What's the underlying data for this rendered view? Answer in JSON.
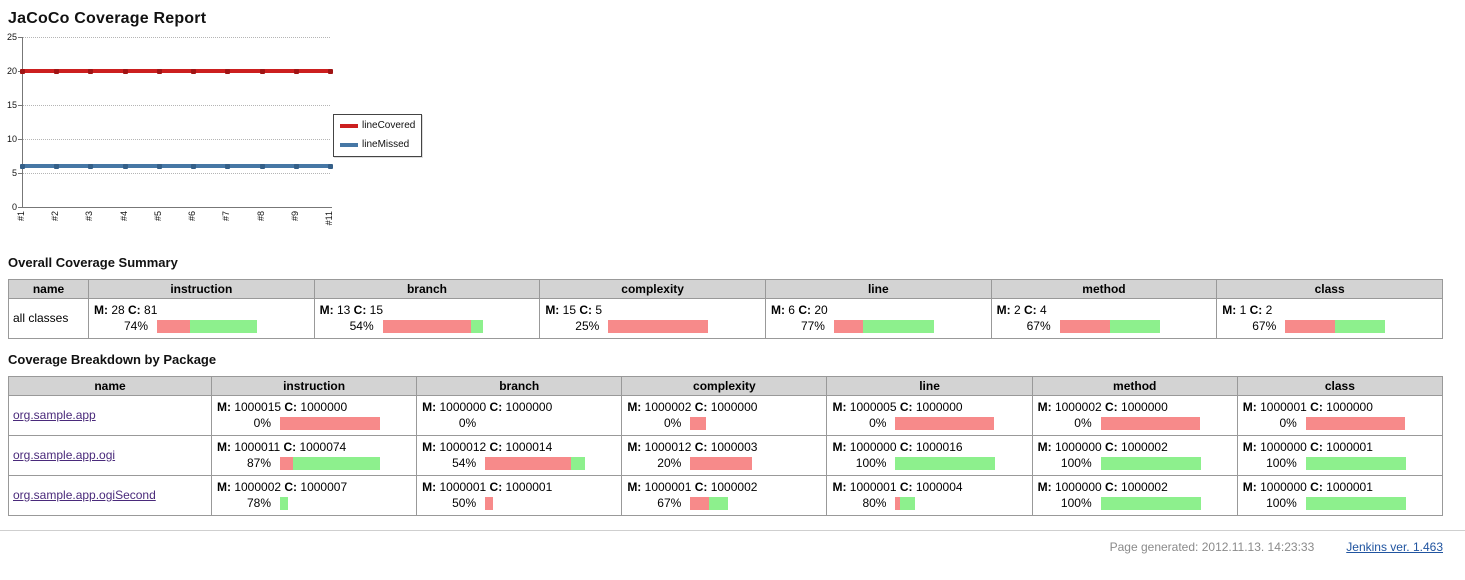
{
  "page_title": "JaCoCo Coverage Report",
  "chart_data": {
    "type": "line",
    "title": "",
    "categories": [
      "#1",
      "#2",
      "#3",
      "#4",
      "#5",
      "#6",
      "#7",
      "#8",
      "#9",
      "#11"
    ],
    "series": [
      {
        "name": "lineCovered",
        "color": "#cc1f1f",
        "marker_color": "#a01414",
        "values": [
          20,
          20,
          20,
          20,
          20,
          20,
          20,
          20,
          20,
          20
        ]
      },
      {
        "name": "lineMissed",
        "color": "#4677a5",
        "marker_color": "#345f88",
        "values": [
          6,
          6,
          6,
          6,
          6,
          6,
          6,
          6,
          6,
          6
        ]
      }
    ],
    "ylim": [
      0,
      25
    ],
    "yticks": [
      0,
      5,
      10,
      15,
      20,
      25
    ],
    "grid": "dotted-horizontal",
    "legend_position": "right"
  },
  "labels": {
    "missed": "M:",
    "covered": "C:"
  },
  "colors": {
    "bar_missed": "#f78a8a",
    "bar_covered": "#8df08d",
    "header_bg": "#d3d3d3",
    "link_purple": "#4a2a7b",
    "line_covered": "#cc1f1f",
    "line_missed": "#4677a5"
  },
  "summary": {
    "heading": "Overall Coverage Summary",
    "columns": [
      "name",
      "instruction",
      "branch",
      "complexity",
      "line",
      "method",
      "class"
    ],
    "rows": [
      {
        "name": "all classes",
        "is_link": false,
        "metrics": [
          {
            "missed": "28",
            "covered": "81",
            "percent": "74%",
            "bar_red": 33,
            "bar_green": 67
          },
          {
            "missed": "13",
            "covered": "15",
            "percent": "54%",
            "bar_red": 88,
            "bar_green": 12
          },
          {
            "missed": "15",
            "covered": "5",
            "percent": "25%",
            "bar_red": 100,
            "bar_green": 0
          },
          {
            "missed": "6",
            "covered": "20",
            "percent": "77%",
            "bar_red": 29,
            "bar_green": 71
          },
          {
            "missed": "2",
            "covered": "4",
            "percent": "67%",
            "bar_red": 50,
            "bar_green": 50
          },
          {
            "missed": "1",
            "covered": "2",
            "percent": "67%",
            "bar_red": 50,
            "bar_green": 50
          }
        ]
      }
    ]
  },
  "breakdown": {
    "heading": "Coverage Breakdown by Package",
    "columns": [
      "name",
      "instruction",
      "branch",
      "complexity",
      "line",
      "method",
      "class"
    ],
    "rows": [
      {
        "name": "org.sample.app",
        "is_link": true,
        "metrics": [
          {
            "missed": "1000015",
            "covered": "1000000",
            "percent": "0%",
            "bar_red": 100,
            "bar_green": 0
          },
          {
            "missed": "1000000",
            "covered": "1000000",
            "percent": "0%",
            "bar_red": 0,
            "bar_green": 0
          },
          {
            "missed": "1000002",
            "covered": "1000000",
            "percent": "0%",
            "bar_red": 16,
            "bar_green": 0
          },
          {
            "missed": "1000005",
            "covered": "1000000",
            "percent": "0%",
            "bar_red": 99,
            "bar_green": 0
          },
          {
            "missed": "1000002",
            "covered": "1000000",
            "percent": "0%",
            "bar_red": 99,
            "bar_green": 0
          },
          {
            "missed": "1000001",
            "covered": "1000000",
            "percent": "0%",
            "bar_red": 99,
            "bar_green": 0
          }
        ]
      },
      {
        "name": "org.sample.app.ogi",
        "is_link": true,
        "metrics": [
          {
            "missed": "1000011",
            "covered": "1000074",
            "percent": "87%",
            "bar_red": 13,
            "bar_green": 87
          },
          {
            "missed": "1000012",
            "covered": "1000014",
            "percent": "54%",
            "bar_red": 86,
            "bar_green": 14
          },
          {
            "missed": "1000012",
            "covered": "1000003",
            "percent": "20%",
            "bar_red": 62,
            "bar_green": 0
          },
          {
            "missed": "1000000",
            "covered": "1000016",
            "percent": "100%",
            "bar_red": 0,
            "bar_green": 100
          },
          {
            "missed": "1000000",
            "covered": "1000002",
            "percent": "100%",
            "bar_red": 0,
            "bar_green": 100
          },
          {
            "missed": "1000000",
            "covered": "1000001",
            "percent": "100%",
            "bar_red": 0,
            "bar_green": 100
          }
        ]
      },
      {
        "name": "org.sample.app.ogiSecond",
        "is_link": true,
        "metrics": [
          {
            "missed": "1000002",
            "covered": "1000007",
            "percent": "78%",
            "bar_red": 0,
            "bar_green": 8
          },
          {
            "missed": "1000001",
            "covered": "1000001",
            "percent": "50%",
            "bar_red": 8,
            "bar_green": 0
          },
          {
            "missed": "1000001",
            "covered": "1000002",
            "percent": "67%",
            "bar_red": 19,
            "bar_green": 19
          },
          {
            "missed": "1000001",
            "covered": "1000004",
            "percent": "80%",
            "bar_red": 5,
            "bar_green": 15
          },
          {
            "missed": "1000000",
            "covered": "1000002",
            "percent": "100%",
            "bar_red": 0,
            "bar_green": 100
          },
          {
            "missed": "1000000",
            "covered": "1000001",
            "percent": "100%",
            "bar_red": 0,
            "bar_green": 100
          }
        ]
      }
    ]
  },
  "footer": {
    "generated_label": "Page generated:",
    "generated_time": "2012.11.13. 14:23:33",
    "jenkins_version": "Jenkins ver. 1.463"
  }
}
